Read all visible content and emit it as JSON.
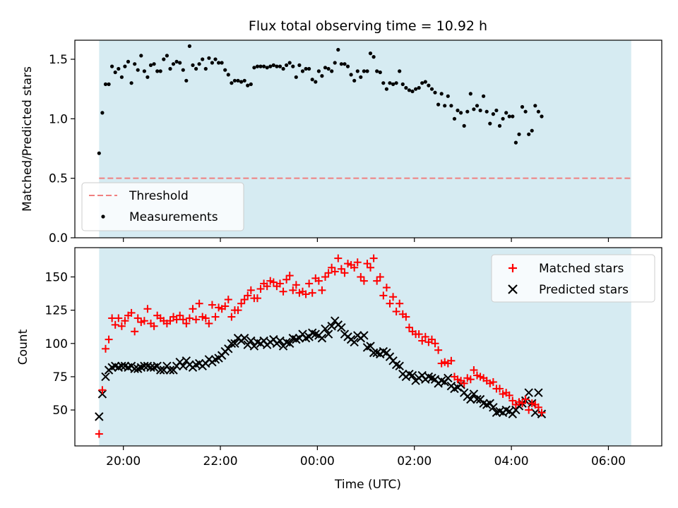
{
  "title": "Flux total observing time = 10.92 h",
  "colors": {
    "band": "#add8e6",
    "threshold": "#f08080",
    "measurements": "#000000",
    "matched": "#ff0000",
    "predicted": "#000000"
  },
  "chart_data": [
    {
      "type": "scatter",
      "ylabel": "Matched/Predicted stars",
      "ylim": [
        0,
        1.66
      ],
      "yticks": [
        "0.0",
        "0.5",
        "1.0",
        "1.5"
      ],
      "ytick_values": [
        0,
        0.5,
        1.0,
        1.5
      ],
      "xlim": [
        19.0,
        31.1
      ],
      "observing_window": [
        19.5,
        30.47
      ],
      "legend": {
        "position": "bottom-left",
        "threshold_label": "Threshold",
        "measurements_label": "Measurements"
      },
      "threshold": 0.5,
      "x_start": 19.5,
      "x_step": 0.0666,
      "ratio": [
        0.71,
        1.05,
        1.29,
        1.29,
        1.44,
        1.39,
        1.42,
        1.35,
        1.44,
        1.48,
        1.3,
        1.46,
        1.41,
        1.53,
        1.4,
        1.35,
        1.45,
        1.46,
        1.4,
        1.4,
        1.5,
        1.53,
        1.42,
        1.46,
        1.48,
        1.47,
        1.41,
        1.32,
        1.61,
        1.45,
        1.42,
        1.46,
        1.5,
        1.42,
        1.51,
        1.47,
        1.5,
        1.47,
        1.47,
        1.41,
        1.37,
        1.3,
        1.32,
        1.32,
        1.31,
        1.32,
        1.28,
        1.29,
        1.43,
        1.44,
        1.44,
        1.44,
        1.43,
        1.44,
        1.45,
        1.44,
        1.44,
        1.42,
        1.45,
        1.47,
        1.44,
        1.35,
        1.45,
        1.4,
        1.42,
        1.42,
        1.33,
        1.31,
        1.4,
        1.36,
        1.43,
        1.42,
        1.4,
        1.47,
        1.58,
        1.46,
        1.46,
        1.44,
        1.37,
        1.32,
        1.4,
        1.35,
        1.4,
        1.4,
        1.55,
        1.52,
        1.4,
        1.39,
        1.3,
        1.25,
        1.3,
        1.29,
        1.3,
        1.4,
        1.29,
        1.26,
        1.24,
        1.23,
        1.25,
        1.26,
        1.3,
        1.31,
        1.28,
        1.25,
        1.22,
        1.12,
        1.21,
        1.11,
        1.19,
        1.11,
        1.0,
        1.07,
        1.05,
        0.94,
        1.06,
        1.21,
        1.08,
        1.11,
        1.07,
        1.19,
        1.06,
        0.96,
        1.04,
        1.07,
        0.94,
        1.0,
        1.05,
        1.02,
        1.02,
        0.8,
        0.87,
        1.1,
        1.06,
        0.87,
        0.9,
        1.11,
        1.06,
        1.02
      ]
    },
    {
      "type": "scatter",
      "xlabel": "Time (UTC)",
      "ylabel": "Count",
      "ylim": [
        23,
        172
      ],
      "yticks": [
        "50",
        "75",
        "100",
        "125",
        "150"
      ],
      "ytick_values": [
        50,
        75,
        100,
        125,
        150
      ],
      "xlim": [
        19.0,
        31.1
      ],
      "observing_window": [
        19.5,
        30.47
      ],
      "xticks": [
        "20:00",
        "22:00",
        "00:00",
        "02:00",
        "04:00",
        "06:00"
      ],
      "xtick_values": [
        20,
        22,
        24,
        26,
        28,
        30
      ],
      "legend": {
        "position": "top-right",
        "matched_label": "Matched stars",
        "predicted_label": "Predicted stars"
      },
      "x_start": 19.5,
      "x_step": 0.0666,
      "series": [
        {
          "name": "Matched stars",
          "marker": "plus",
          "values": [
            32,
            65,
            96,
            103,
            119,
            114,
            119,
            113,
            117,
            121,
            123,
            109,
            119,
            116,
            117,
            126,
            115,
            113,
            121,
            119,
            117,
            115,
            117,
            120,
            118,
            121,
            118,
            115,
            119,
            126,
            118,
            130,
            120,
            119,
            115,
            129,
            120,
            127,
            126,
            128,
            133,
            120,
            125,
            125,
            130,
            133,
            136,
            140,
            134,
            134,
            141,
            145,
            143,
            147,
            146,
            143,
            145,
            139,
            148,
            151,
            140,
            144,
            138,
            139,
            137,
            145,
            138,
            149,
            147,
            140,
            150,
            153,
            157,
            154,
            164,
            156,
            153,
            160,
            159,
            157,
            161,
            150,
            147,
            160,
            157,
            164,
            147,
            150,
            136,
            142,
            130,
            135,
            124,
            130,
            122,
            120,
            112,
            109,
            107,
            107,
            102,
            105,
            101,
            103,
            100,
            95,
            85,
            86,
            85,
            87,
            75,
            73,
            72,
            70,
            74,
            73,
            80,
            76,
            75,
            74,
            72,
            70,
            71,
            66,
            66,
            62,
            63,
            61,
            57,
            54,
            56,
            55,
            58,
            50,
            55,
            54,
            52,
            48
          ]
        },
        {
          "name": "Predicted stars",
          "marker": "x",
          "values": [
            45,
            62,
            75,
            80,
            82,
            83,
            82,
            83,
            83,
            82,
            83,
            81,
            81,
            82,
            83,
            83,
            82,
            82,
            83,
            80,
            80,
            83,
            80,
            80,
            83,
            86,
            83,
            87,
            84,
            82,
            84,
            85,
            83,
            85,
            88,
            86,
            88,
            89,
            91,
            94,
            96,
            100,
            100,
            104,
            102,
            104,
            99,
            102,
            98,
            101,
            100,
            102,
            99,
            101,
            103,
            100,
            102,
            98,
            101,
            100,
            104,
            103,
            104,
            107,
            104,
            105,
            108,
            107,
            106,
            104,
            111,
            107,
            113,
            117,
            114,
            112,
            107,
            105,
            103,
            101,
            106,
            104,
            106,
            97,
            98,
            93,
            93,
            92,
            94,
            93,
            90,
            87,
            84,
            83,
            77,
            75,
            77,
            76,
            72,
            74,
            76,
            73,
            75,
            74,
            73,
            70,
            72,
            71,
            74,
            68,
            66,
            67,
            69,
            63,
            60,
            58,
            62,
            58,
            58,
            55,
            54,
            55,
            52,
            48,
            49,
            48,
            50,
            49,
            47,
            50,
            53,
            55,
            57,
            63,
            55,
            48,
            63,
            47
          ]
        }
      ]
    }
  ]
}
